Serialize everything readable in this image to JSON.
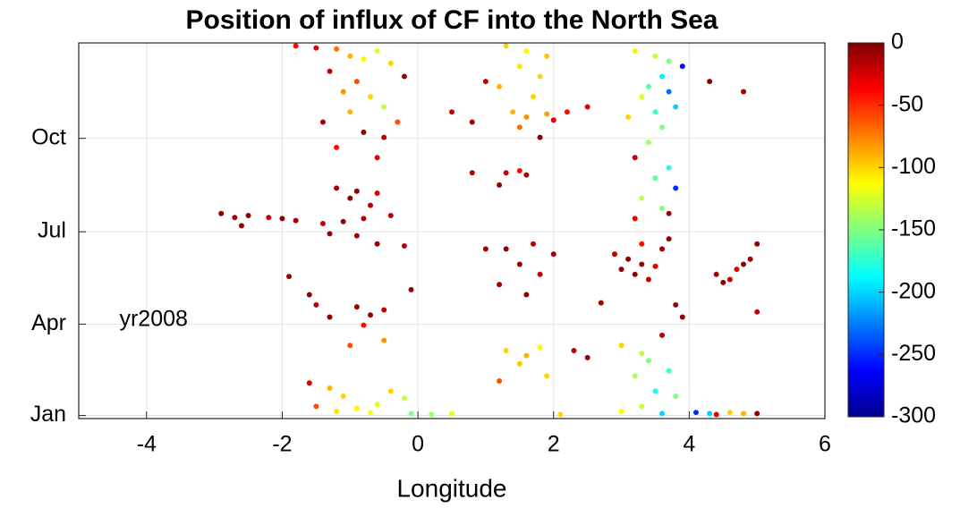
{
  "chart_data": {
    "type": "scatter",
    "title": "Position of influx of CF into the North Sea",
    "x_label": "Longitude",
    "annotation": "yr2008",
    "xlim": [
      -5,
      6
    ],
    "xticks": [
      -4,
      -2,
      0,
      2,
      4,
      6
    ],
    "ylim": [
      -2,
      368
    ],
    "yticks": [
      {
        "value": 1,
        "label": "Jan"
      },
      {
        "value": 91,
        "label": "Apr"
      },
      {
        "value": 182,
        "label": "Jul"
      },
      {
        "value": 274,
        "label": "Oct"
      }
    ],
    "grid": true,
    "colormap": "jet",
    "clim": [
      -300,
      0
    ],
    "cticks": [
      0,
      -50,
      -100,
      -150,
      -200,
      -250,
      -300
    ],
    "x": [
      -1.8,
      -1.5,
      -1.2,
      -1.0,
      -0.8,
      -0.6,
      -0.4,
      -1.3,
      -0.9,
      -0.2,
      -1.1,
      -0.7,
      -0.5,
      -1.0,
      -0.3,
      -1.4,
      -0.8,
      -0.5,
      -1.2,
      -0.6,
      1.3,
      1.6,
      1.9,
      1.5,
      1.8,
      1.2,
      1.7,
      1.0,
      1.4,
      1.6,
      1.9,
      2.0,
      1.5,
      1.8,
      2.2,
      2.5,
      3.2,
      3.5,
      3.7,
      3.9,
      3.6,
      3.4,
      3.3,
      3.7,
      3.5,
      3.8,
      3.1,
      3.6,
      3.4,
      3.2,
      3.7,
      3.5,
      3.8,
      3.3,
      3.6,
      3.2,
      3.7,
      4.3,
      4.8,
      0.5,
      0.8,
      1.3,
      1.5,
      1.6,
      1.2,
      0.8,
      -1.2,
      -0.9,
      -0.6,
      -1.0,
      -0.7,
      -2.9,
      -2.7,
      -2.5,
      -2.2,
      -2.0,
      -1.8,
      -2.6,
      -1.4,
      -1.1,
      -0.8,
      -0.4,
      -1.3,
      -0.9,
      -0.6,
      -0.2,
      1.0,
      1.3,
      1.7,
      2.0,
      1.5,
      1.8,
      1.2,
      1.6,
      2.9,
      3.1,
      3.3,
      3.5,
      3.2,
      3.4,
      3.6,
      3.0,
      3.3,
      3.7,
      4.4,
      4.6,
      4.8,
      4.9,
      5.0,
      4.7,
      4.5,
      -1.9,
      -1.6,
      -1.5,
      -0.9,
      -0.7,
      -0.5,
      -0.1,
      -0.8,
      -1.3,
      3.8,
      3.9,
      2.7,
      5.0,
      -1.0,
      -0.5,
      1.3,
      1.6,
      1.8,
      1.5,
      1.9,
      1.2,
      3.0,
      3.3,
      3.6,
      3.4,
      3.2,
      3.7,
      2.3,
      2.5,
      -1.6,
      -1.3,
      -1.1,
      -0.9,
      -0.6,
      -0.4,
      -0.2,
      -0.1,
      0.2,
      0.5,
      -1.2,
      -0.7,
      -1.5,
      2.1,
      3.0,
      3.3,
      3.6,
      3.8,
      3.5,
      4.1,
      4.3,
      4.6,
      4.8,
      5.0,
      4.4
    ],
    "values": [
      365,
      363,
      362,
      355,
      352,
      360,
      348,
      340,
      330,
      335,
      320,
      315,
      305,
      300,
      290,
      290,
      280,
      275,
      265,
      255,
      365,
      360,
      355,
      345,
      335,
      325,
      315,
      330,
      300,
      295,
      298,
      292,
      285,
      275,
      300,
      305,
      360,
      355,
      350,
      345,
      335,
      325,
      315,
      320,
      300,
      305,
      295,
      285,
      270,
      255,
      245,
      235,
      225,
      215,
      205,
      195,
      200,
      330,
      320,
      300,
      290,
      240,
      242,
      238,
      228,
      240,
      225,
      222,
      220,
      215,
      208,
      200,
      196,
      198,
      196,
      195,
      193,
      188,
      190,
      192,
      195,
      198,
      180,
      178,
      170,
      168,
      165,
      165,
      170,
      160,
      150,
      140,
      130,
      120,
      160,
      155,
      150,
      148,
      140,
      135,
      165,
      145,
      170,
      175,
      140,
      135,
      150,
      155,
      170,
      145,
      132,
      138,
      120,
      110,
      108,
      100,
      105,
      125,
      90,
      98,
      110,
      98,
      112,
      103,
      70,
      75,
      65,
      60,
      68,
      52,
      40,
      35,
      70,
      62,
      80,
      55,
      40,
      45,
      65,
      58,
      33,
      28,
      20,
      8,
      12,
      25,
      18,
      3,
      2,
      3,
      5,
      4,
      10,
      2,
      5,
      10,
      3,
      20,
      25,
      4,
      3,
      4,
      3,
      3,
      2
    ],
    "color_values": [
      -40,
      -30,
      -70,
      -90,
      -110,
      -120,
      -100,
      -20,
      -60,
      -10,
      -80,
      -100,
      -130,
      -90,
      -60,
      -10,
      -5,
      -20,
      -40,
      -30,
      -100,
      -110,
      -95,
      -105,
      -100,
      -90,
      -100,
      -20,
      -90,
      -80,
      -85,
      -30,
      -70,
      -5,
      -40,
      -30,
      -110,
      -130,
      -150,
      -260,
      -190,
      -160,
      -120,
      -230,
      -170,
      -200,
      -100,
      -150,
      -140,
      -20,
      -180,
      -160,
      -250,
      -130,
      -150,
      -30,
      -10,
      -5,
      -10,
      -20,
      -10,
      -20,
      -40,
      -10,
      -5,
      -20,
      -10,
      -5,
      -30,
      -5,
      -20,
      -5,
      -10,
      -5,
      -20,
      -5,
      -10,
      -5,
      -20,
      -5,
      -10,
      -20,
      -5,
      -10,
      -5,
      -20,
      -10,
      -5,
      -20,
      -10,
      -5,
      -20,
      -10,
      -5,
      -20,
      -5,
      -10,
      -30,
      -5,
      -20,
      -10,
      -5,
      -40,
      -5,
      -10,
      -20,
      -5,
      -10,
      -5,
      -30,
      -5,
      -10,
      -5,
      -20,
      -10,
      -5,
      -20,
      -10,
      -40,
      -5,
      -10,
      -5,
      -10,
      -20,
      -60,
      -80,
      -100,
      -90,
      -110,
      -95,
      -100,
      -60,
      -100,
      -130,
      -20,
      -150,
      -140,
      -170,
      -20,
      -10,
      -30,
      -90,
      -100,
      -110,
      -120,
      -100,
      -130,
      -150,
      -140,
      -120,
      -105,
      -115,
      -60,
      -100,
      -110,
      -130,
      -200,
      -150,
      -180,
      -250,
      -200,
      -100,
      -90,
      -5,
      -30
    ]
  }
}
